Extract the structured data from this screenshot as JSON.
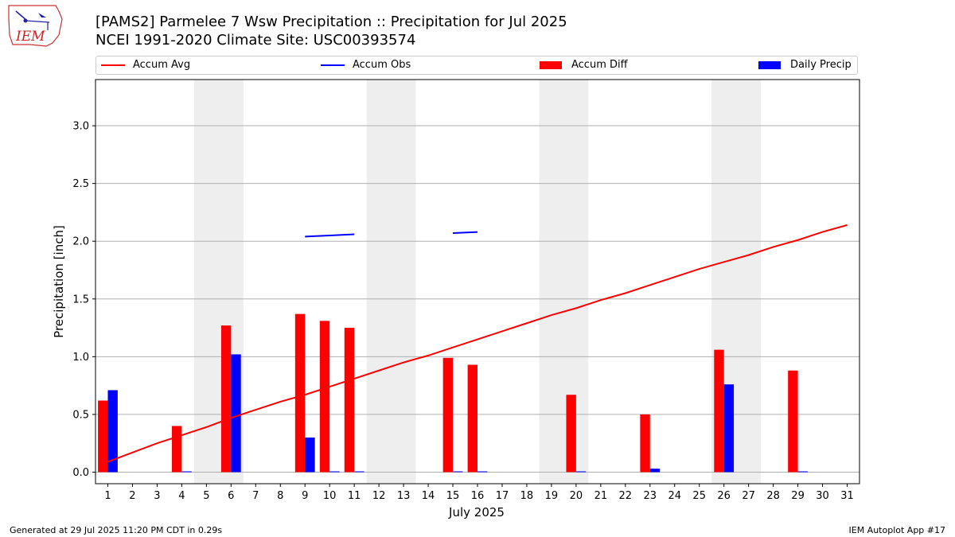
{
  "header": {
    "title_line1": "[PAMS2] Parmelee 7 Wsw Precipitation :: Precipitation for Jul 2025",
    "title_line2": "NCEI 1991-2020 Climate Site: USC00393574",
    "logo_text": "IEM"
  },
  "footer": {
    "left": "Generated at 29 Jul 2025 11:20 PM CDT in 0.29s",
    "right": "IEM Autoplot App #17"
  },
  "colors": {
    "accum_avg": "#ff0000",
    "accum_obs": "#0000ff",
    "accum_diff": "#ff0000",
    "daily_precip": "#0000ff",
    "weekend_band": "#eeeeee",
    "grid": "#b0b0b0"
  },
  "chart_data": {
    "type": "bar",
    "title": "[PAMS2] Parmelee 7 Wsw Precipitation :: Precipitation for Jul 2025",
    "subtitle": "NCEI 1991-2020 Climate Site: USC00393574",
    "xlabel": "July 2025",
    "ylabel": "Precipitation [inch]",
    "xlim": [
      0.5,
      31.5
    ],
    "ylim": [
      -0.1,
      3.4
    ],
    "yticks": [
      "0.0",
      "0.5",
      "1.0",
      "1.5",
      "2.0",
      "2.5",
      "3.0"
    ],
    "ytick_values": [
      0,
      0.5,
      1.0,
      1.5,
      2.0,
      2.5,
      3.0
    ],
    "days": [
      1,
      2,
      3,
      4,
      5,
      6,
      7,
      8,
      9,
      10,
      11,
      12,
      13,
      14,
      15,
      16,
      17,
      18,
      19,
      20,
      21,
      22,
      23,
      24,
      25,
      26,
      27,
      28,
      29,
      30,
      31
    ],
    "weekend_bands": [
      [
        4.5,
        6.5
      ],
      [
        11.5,
        13.5
      ],
      [
        18.5,
        20.5
      ],
      [
        25.5,
        27.5
      ]
    ],
    "grid": "horizontal",
    "legend_position": "top",
    "legend": [
      "Accum Avg",
      "Accum Obs",
      "Accum Diff",
      "Daily Precip"
    ],
    "series": [
      {
        "name": "Accum Avg",
        "kind": "line",
        "x": [
          1,
          2,
          3,
          4,
          5,
          6,
          7,
          8,
          9,
          10,
          11,
          12,
          13,
          14,
          15,
          16,
          17,
          18,
          19,
          20,
          21,
          22,
          23,
          24,
          25,
          26,
          27,
          28,
          29,
          30,
          31
        ],
        "values": [
          0.09,
          0.17,
          0.25,
          0.32,
          0.39,
          0.47,
          0.54,
          0.61,
          0.67,
          0.74,
          0.81,
          0.88,
          0.95,
          1.01,
          1.08,
          1.15,
          1.22,
          1.29,
          1.36,
          1.42,
          1.49,
          1.55,
          1.62,
          1.69,
          1.76,
          1.82,
          1.88,
          1.95,
          2.01,
          2.08,
          2.14
        ]
      },
      {
        "name": "Accum Obs",
        "kind": "line",
        "segments": [
          {
            "x": [
              9,
              10,
              11
            ],
            "values": [
              2.04,
              2.05,
              2.06
            ]
          },
          {
            "x": [
              15,
              16
            ],
            "values": [
              2.07,
              2.08
            ]
          }
        ]
      },
      {
        "name": "Accum Diff",
        "kind": "bar",
        "x": [
          1,
          4,
          6,
          9,
          10,
          11,
          15,
          16,
          20,
          23,
          26,
          29
        ],
        "values": [
          0.62,
          0.4,
          1.27,
          1.37,
          1.31,
          1.25,
          0.99,
          0.93,
          0.67,
          0.5,
          1.06,
          0.88
        ]
      },
      {
        "name": "Daily Precip",
        "kind": "bar",
        "x": [
          1,
          4,
          6,
          9,
          10,
          11,
          15,
          16,
          20,
          23,
          26,
          29
        ],
        "values": [
          0.71,
          0.005,
          1.02,
          0.3,
          0.005,
          0.005,
          0.005,
          0.005,
          0.005,
          0.03,
          0.76,
          0.005
        ]
      }
    ]
  }
}
